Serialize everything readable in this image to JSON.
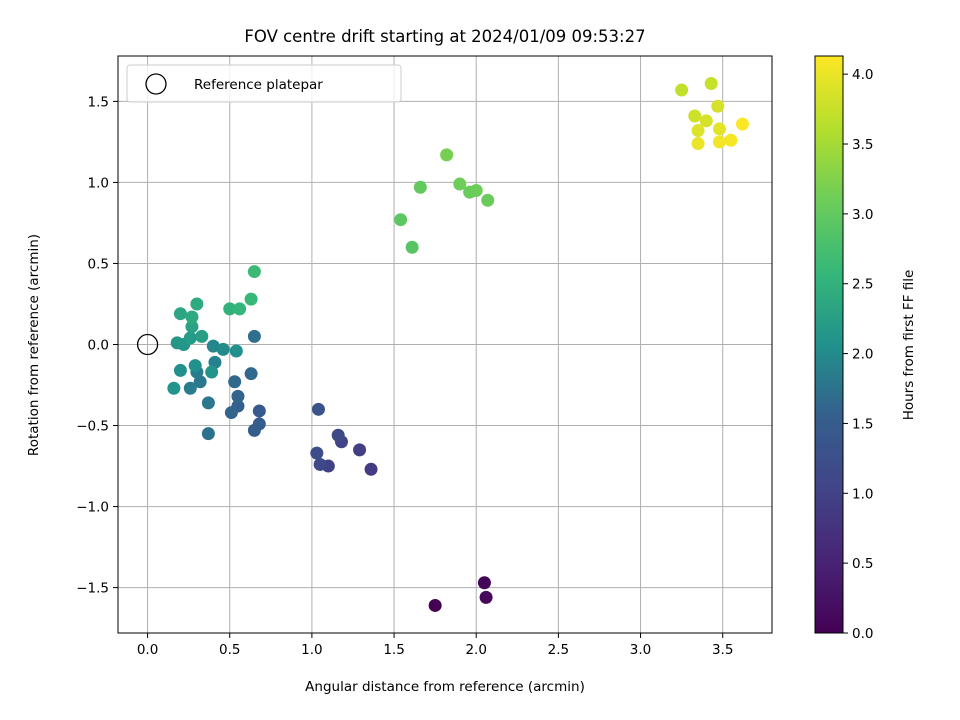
{
  "chart_data": {
    "type": "scatter",
    "title": "FOV centre drift starting at 2024/01/09 09:53:27",
    "xlabel": "Angular distance from reference (arcmin)",
    "ylabel": "Rotation from reference (arcmin)",
    "xlim": [
      -0.18,
      3.8
    ],
    "ylim": [
      -1.78,
      1.78
    ],
    "x_ticks": [
      0.0,
      0.5,
      1.0,
      1.5,
      2.0,
      2.5,
      3.0,
      3.5
    ],
    "x_tick_labels": [
      "0.0",
      "0.5",
      "1.0",
      "1.5",
      "2.0",
      "2.5",
      "3.0",
      "3.5"
    ],
    "y_ticks": [
      -1.5,
      -1.0,
      -0.5,
      0.0,
      0.5,
      1.0,
      1.5
    ],
    "y_tick_labels": [
      "−1.5",
      "−1.0",
      "−0.5",
      "0.0",
      "0.5",
      "1.0",
      "1.5"
    ],
    "grid": true,
    "legend": {
      "placement": "top-left",
      "entries": [
        {
          "label": "Reference platepar",
          "marker": "open-circle"
        }
      ]
    },
    "reference_point": {
      "x": 0.0,
      "y": 0.0
    },
    "colorbar": {
      "label": "Hours from first FF file",
      "range": [
        0.0,
        4.13
      ],
      "ticks": [
        0.0,
        0.5,
        1.0,
        1.5,
        2.0,
        2.5,
        3.0,
        3.5,
        4.0
      ],
      "tick_labels": [
        "0.0",
        "0.5",
        "1.0",
        "1.5",
        "2.0",
        "2.5",
        "3.0",
        "3.5",
        "4.0"
      ],
      "colormap": "viridis"
    },
    "points": [
      {
        "x": 1.75,
        "y": -1.61,
        "c": 0.0
      },
      {
        "x": 2.05,
        "y": -1.47,
        "c": 0.05
      },
      {
        "x": 2.06,
        "y": -1.56,
        "c": 0.1
      },
      {
        "x": 1.36,
        "y": -0.77,
        "c": 0.9
      },
      {
        "x": 1.29,
        "y": -0.65,
        "c": 0.95
      },
      {
        "x": 1.1,
        "y": -0.75,
        "c": 1.0
      },
      {
        "x": 1.18,
        "y": -0.6,
        "c": 1.05
      },
      {
        "x": 1.05,
        "y": -0.74,
        "c": 1.1
      },
      {
        "x": 1.16,
        "y": -0.56,
        "c": 1.15
      },
      {
        "x": 1.03,
        "y": -0.67,
        "c": 1.2
      },
      {
        "x": 1.04,
        "y": -0.4,
        "c": 1.3
      },
      {
        "x": 0.68,
        "y": -0.41,
        "c": 1.45
      },
      {
        "x": 0.68,
        "y": -0.49,
        "c": 1.5
      },
      {
        "x": 0.65,
        "y": -0.53,
        "c": 1.5
      },
      {
        "x": 0.55,
        "y": -0.38,
        "c": 1.55
      },
      {
        "x": 0.55,
        "y": -0.32,
        "c": 1.6
      },
      {
        "x": 0.51,
        "y": -0.42,
        "c": 1.6
      },
      {
        "x": 0.53,
        "y": -0.23,
        "c": 1.65
      },
      {
        "x": 0.63,
        "y": -0.18,
        "c": 1.65
      },
      {
        "x": 0.65,
        "y": 0.05,
        "c": 1.7
      },
      {
        "x": 0.37,
        "y": -0.55,
        "c": 1.75
      },
      {
        "x": 0.32,
        "y": -0.23,
        "c": 1.8
      },
      {
        "x": 0.26,
        "y": -0.27,
        "c": 1.85
      },
      {
        "x": 0.3,
        "y": -0.17,
        "c": 1.85
      },
      {
        "x": 0.37,
        "y": -0.36,
        "c": 1.8
      },
      {
        "x": 0.41,
        "y": -0.11,
        "c": 1.9
      },
      {
        "x": 0.4,
        "y": -0.01,
        "c": 1.95
      },
      {
        "x": 0.46,
        "y": -0.03,
        "c": 2.0
      },
      {
        "x": 0.54,
        "y": -0.04,
        "c": 2.05
      },
      {
        "x": 0.29,
        "y": -0.13,
        "c": 2.05
      },
      {
        "x": 0.2,
        "y": -0.16,
        "c": 2.05
      },
      {
        "x": 0.16,
        "y": -0.27,
        "c": 2.1
      },
      {
        "x": 0.39,
        "y": -0.17,
        "c": 2.1
      },
      {
        "x": 0.22,
        "y": 0.0,
        "c": 2.1
      },
      {
        "x": 0.18,
        "y": 0.01,
        "c": 2.15
      },
      {
        "x": 0.26,
        "y": 0.04,
        "c": 2.2
      },
      {
        "x": 0.33,
        "y": 0.05,
        "c": 2.25
      },
      {
        "x": 0.27,
        "y": 0.11,
        "c": 2.3
      },
      {
        "x": 0.2,
        "y": 0.19,
        "c": 2.35
      },
      {
        "x": 0.27,
        "y": 0.17,
        "c": 2.4
      },
      {
        "x": 0.3,
        "y": 0.25,
        "c": 2.4
      },
      {
        "x": 0.5,
        "y": 0.22,
        "c": 2.5
      },
      {
        "x": 0.56,
        "y": 0.22,
        "c": 2.55
      },
      {
        "x": 0.63,
        "y": 0.28,
        "c": 2.6
      },
      {
        "x": 0.65,
        "y": 0.45,
        "c": 2.65
      },
      {
        "x": 1.61,
        "y": 0.6,
        "c": 2.9
      },
      {
        "x": 1.54,
        "y": 0.77,
        "c": 2.95
      },
      {
        "x": 1.66,
        "y": 0.97,
        "c": 3.0
      },
      {
        "x": 2.07,
        "y": 0.89,
        "c": 3.05
      },
      {
        "x": 1.96,
        "y": 0.94,
        "c": 3.05
      },
      {
        "x": 2.0,
        "y": 0.95,
        "c": 3.1
      },
      {
        "x": 1.9,
        "y": 0.99,
        "c": 3.1
      },
      {
        "x": 1.82,
        "y": 1.17,
        "c": 3.15
      },
      {
        "x": 3.25,
        "y": 1.57,
        "c": 3.7
      },
      {
        "x": 3.43,
        "y": 1.61,
        "c": 3.75
      },
      {
        "x": 3.33,
        "y": 1.41,
        "c": 3.8
      },
      {
        "x": 3.47,
        "y": 1.47,
        "c": 3.85
      },
      {
        "x": 3.4,
        "y": 1.38,
        "c": 3.85
      },
      {
        "x": 3.35,
        "y": 1.32,
        "c": 3.9
      },
      {
        "x": 3.48,
        "y": 1.33,
        "c": 3.95
      },
      {
        "x": 3.35,
        "y": 1.24,
        "c": 4.0
      },
      {
        "x": 3.48,
        "y": 1.25,
        "c": 4.05
      },
      {
        "x": 3.55,
        "y": 1.26,
        "c": 4.08
      },
      {
        "x": 3.62,
        "y": 1.36,
        "c": 4.12
      }
    ]
  }
}
